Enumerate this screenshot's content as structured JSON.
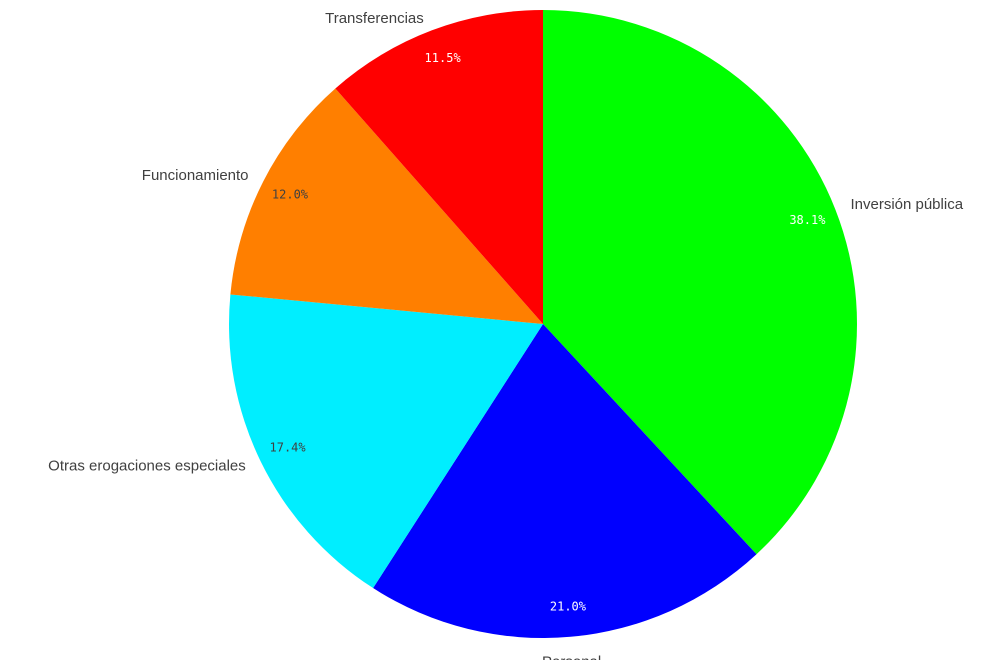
{
  "chart_data": {
    "type": "pie",
    "title": "",
    "slices": [
      {
        "label": "Inversión pública",
        "value": 38.1,
        "value_label": "38.1%",
        "color": "#00ff00",
        "label_color": "#ffffff"
      },
      {
        "label": "Personal",
        "value": 21.0,
        "value_label": "21.0%",
        "color": "#0000ff",
        "label_color": "#ffffff"
      },
      {
        "label": "Otras erogaciones especiales",
        "value": 17.4,
        "value_label": "17.4%",
        "color": "#00eeff",
        "label_color": "#404040"
      },
      {
        "label": "Funcionamiento",
        "value": 12.0,
        "value_label": "12.0%",
        "color": "#ff7f00",
        "label_color": "#404040"
      },
      {
        "label": "Transferencias",
        "value": 11.5,
        "value_label": "11.5%",
        "color": "#ff0000",
        "label_color": "#ffffff"
      }
    ],
    "start_angle_deg": 0,
    "direction": "clockwise"
  }
}
